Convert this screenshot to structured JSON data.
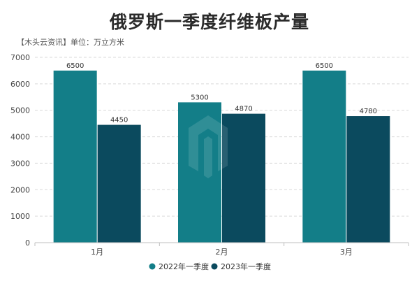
{
  "chart_data": {
    "type": "bar",
    "title": "俄罗斯一季度纤维板产量",
    "subtitle": "【木头云资讯】单位：万立方米",
    "categories": [
      "1月",
      "2月",
      "3月"
    ],
    "series": [
      {
        "name": "2022年一季度",
        "values": [
          6500,
          5300,
          6500
        ],
        "color": "#137e88"
      },
      {
        "name": "2023年一季度",
        "values": [
          4450,
          4870,
          4780
        ],
        "color": "#0b4a5e"
      }
    ],
    "ylim": [
      0,
      7000
    ],
    "yticks": [
      0,
      1000,
      2000,
      3000,
      4000,
      5000,
      6000,
      7000
    ],
    "grid": true,
    "legend_position": "bottom"
  }
}
